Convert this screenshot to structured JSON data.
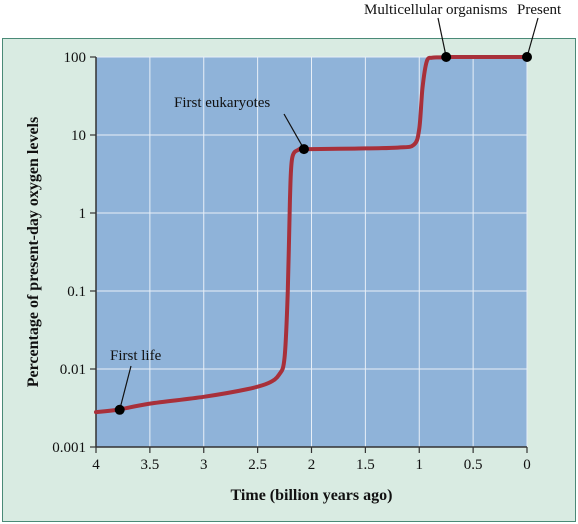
{
  "chart_data": {
    "type": "line",
    "title": "",
    "xlabel": "Time (billion years ago)",
    "ylabel": "Percentage of present-day oxygen levels",
    "x_reversed": true,
    "xlim": [
      4,
      0
    ],
    "ylim": [
      0.001,
      100
    ],
    "y_scale": "log",
    "grid": true,
    "x_ticks": [
      "4",
      "3.5",
      "3",
      "2.5",
      "2",
      "1.5",
      "1",
      "0.5",
      "0"
    ],
    "y_ticks": [
      "100",
      "10",
      "1",
      "0.1",
      "0.01",
      "0.001"
    ],
    "series": [
      {
        "color": "#a8303a",
        "x": [
          4.0,
          3.8,
          3.5,
          3.0,
          2.6,
          2.4,
          2.3,
          2.25,
          2.22,
          2.2,
          2.18,
          2.12,
          2.08,
          2.0,
          1.6,
          1.2,
          1.05,
          1.0,
          0.97,
          0.93,
          0.88,
          0.8,
          0.74,
          0.6,
          0.3,
          0.0
        ],
        "y": [
          0.0028,
          0.003,
          0.0036,
          0.0044,
          0.0055,
          0.0066,
          0.0085,
          0.014,
          0.1,
          1.5,
          5.0,
          6.5,
          6.6,
          6.6,
          6.7,
          6.9,
          7.5,
          12,
          40,
          88,
          98,
          99,
          100,
          100,
          100,
          100
        ]
      }
    ],
    "annotations": [
      {
        "label": "First life",
        "x": 3.78,
        "y": 0.003
      },
      {
        "label": "First eukaryotes",
        "x": 2.07,
        "y": 6.6
      },
      {
        "label": "Multicellular organisms",
        "x": 0.75,
        "y": 100
      },
      {
        "label": "Present",
        "x": 0.0,
        "y": 100
      }
    ],
    "colors": {
      "background": "#d9ebe2",
      "plot_area": "#8fb3d9",
      "grid": "#e8eff7",
      "line": "#a8303a",
      "frame": "#4a8a77"
    }
  }
}
